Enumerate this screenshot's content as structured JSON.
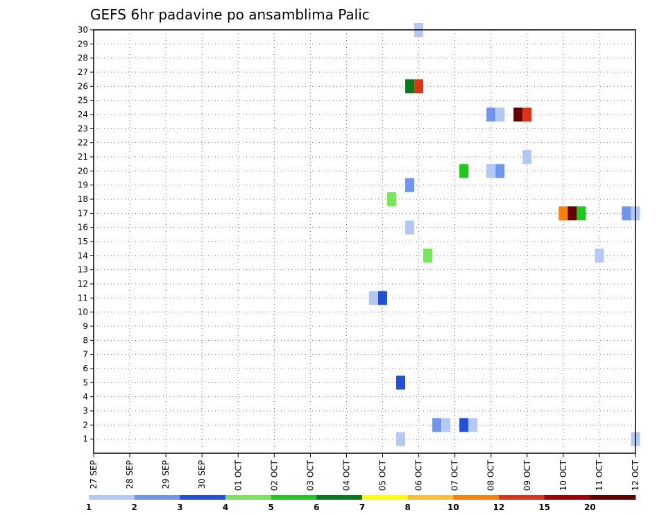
{
  "chart_data": {
    "type": "heatmap",
    "title": "GEFS 6hr padavine po ansamblima Palic",
    "xlabel": "",
    "ylabel": "",
    "x_tick_labels": [
      "27 SEP",
      "28 SEP",
      "29 SEP",
      "30 SEP",
      "01 OCT",
      "02 OCT",
      "03 OCT",
      "04 OCT",
      "05 OCT",
      "06 OCT",
      "07 OCT",
      "08 OCT",
      "09 OCT",
      "10 OCT",
      "11 OCT",
      "12 OCT"
    ],
    "y_tick_labels": [
      "1",
      "2",
      "3",
      "4",
      "5",
      "6",
      "7",
      "8",
      "9",
      "10",
      "11",
      "12",
      "13",
      "14",
      "15",
      "16",
      "17",
      "18",
      "19",
      "20",
      "21",
      "22",
      "23",
      "24",
      "25",
      "26",
      "27",
      "28",
      "29",
      "30"
    ],
    "x_range_days": [
      0,
      15
    ],
    "y_range_members": [
      0,
      30
    ],
    "grid": true,
    "colorbar": {
      "placement": "bottom",
      "labels": [
        "1",
        "2",
        "3",
        "4",
        "5",
        "6",
        "7",
        "8",
        "10",
        "12",
        "15",
        "20"
      ],
      "colors": [
        "#b4c8f5",
        "#6e96f0",
        "#1e50dc",
        "#78e65a",
        "#1ec81e",
        "#0a781e",
        "#ffff00",
        "#ffbe32",
        "#ff8000",
        "#e13214",
        "#a50000",
        "#640000"
      ]
    },
    "cells": [
      {
        "member": 30,
        "day": 9.0,
        "level": 1
      },
      {
        "member": 26,
        "day": 8.75,
        "level": 6
      },
      {
        "member": 26,
        "day": 9.0,
        "level": 10
      },
      {
        "member": 24,
        "day": 11.0,
        "level": 2
      },
      {
        "member": 24,
        "day": 11.25,
        "level": 1
      },
      {
        "member": 24,
        "day": 11.75,
        "level": 12
      },
      {
        "member": 24,
        "day": 12.0,
        "level": 10
      },
      {
        "member": 21,
        "day": 12.0,
        "level": 1
      },
      {
        "member": 20,
        "day": 10.25,
        "level": 5
      },
      {
        "member": 20,
        "day": 11.0,
        "level": 1
      },
      {
        "member": 20,
        "day": 11.25,
        "level": 2
      },
      {
        "member": 19,
        "day": 8.75,
        "level": 2
      },
      {
        "member": 18,
        "day": 8.25,
        "level": 4
      },
      {
        "member": 17,
        "day": 13.0,
        "level": 9
      },
      {
        "member": 17,
        "day": 13.25,
        "level": 12
      },
      {
        "member": 17,
        "day": 13.5,
        "level": 5
      },
      {
        "member": 17,
        "day": 14.75,
        "level": 2
      },
      {
        "member": 17,
        "day": 15.0,
        "level": 1
      },
      {
        "member": 16,
        "day": 8.75,
        "level": 1
      },
      {
        "member": 14,
        "day": 9.25,
        "level": 4
      },
      {
        "member": 14,
        "day": 14.0,
        "level": 1
      },
      {
        "member": 11,
        "day": 7.75,
        "level": 1
      },
      {
        "member": 11,
        "day": 8.0,
        "level": 3
      },
      {
        "member": 5,
        "day": 8.5,
        "level": 3
      },
      {
        "member": 2,
        "day": 9.5,
        "level": 2
      },
      {
        "member": 2,
        "day": 9.75,
        "level": 1
      },
      {
        "member": 2,
        "day": 10.25,
        "level": 3
      },
      {
        "member": 2,
        "day": 10.5,
        "level": 1
      },
      {
        "member": 1,
        "day": 8.5,
        "level": 1
      },
      {
        "member": 1,
        "day": 15.0,
        "level": 1
      }
    ]
  }
}
